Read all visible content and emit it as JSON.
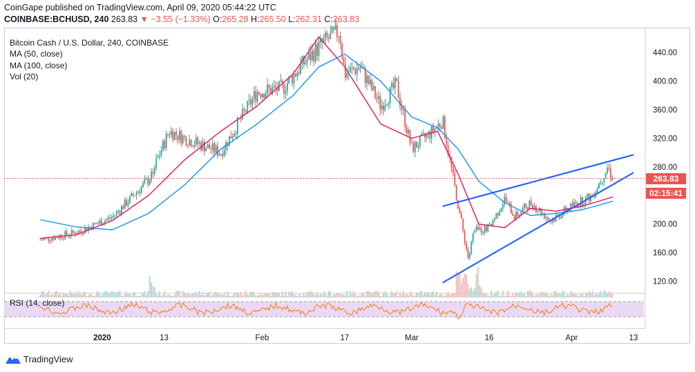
{
  "header": {
    "published_line": "CoinGape published on TradingView.com, April 09, 2020 05:44:22 UTC",
    "symbol": "COINBASE:BCHUSD, 240",
    "last": "263.83",
    "change": "▼ −3.55 (−1.33%)",
    "o_label": "O:",
    "o_value": "265.28",
    "h_label": "H:",
    "h_value": "265.50",
    "l_label": "L:",
    "l_value": "262.31",
    "c_label": "C:",
    "c_value": "263.83"
  },
  "legend": {
    "title": "Bitcoin Cash / U.S. Dollar, 240, COINBASE",
    "ma50": "MA (50, close)",
    "ma100": "MA (100, close)",
    "vol": "Vol (20)",
    "rsi": "RSI (14, close)"
  },
  "price_tag": "263.83",
  "time_tag": "02:15:41",
  "footer": {
    "brand": "TradingView"
  },
  "colors": {
    "up": "#26a69a",
    "down": "#ef5350",
    "ma50": "#e91e63",
    "ma100": "#2196f3",
    "trendline": "#2962ff",
    "rsi": "#f57c00",
    "rsi_band": "#ead9f5"
  },
  "chart_data": {
    "type": "line",
    "title": "Bitcoin Cash / U.S. Dollar, 240, COINBASE",
    "ylim": [
      105,
      475
    ],
    "y_ticks": [
      "440.00",
      "400.00",
      "360.00",
      "320.00",
      "280.00",
      "240.00",
      "200.00",
      "160.00",
      "120.00"
    ],
    "x_ticks": [
      "2020",
      "13",
      "Feb",
      "17",
      "Mar",
      "16",
      "Apr",
      "13"
    ],
    "grid": false,
    "series": [
      {
        "name": "MA (50, close)",
        "x": [
          "2019-12-20",
          "2019-12-27",
          "2020-01-03",
          "2020-01-10",
          "2020-01-17",
          "2020-01-24",
          "2020-01-31",
          "2020-02-07",
          "2020-02-12",
          "2020-02-17",
          "2020-02-24",
          "2020-03-01",
          "2020-03-06",
          "2020-03-10",
          "2020-03-14",
          "2020-03-19",
          "2020-03-24",
          "2020-03-29",
          "2020-04-03",
          "2020-04-09"
        ],
        "values": [
          180,
          185,
          205,
          240,
          290,
          330,
          365,
          410,
          462,
          420,
          340,
          320,
          330,
          270,
          200,
          195,
          222,
          218,
          225,
          238
        ]
      },
      {
        "name": "MA (100, close)",
        "x": [
          "2019-12-20",
          "2019-12-27",
          "2020-01-03",
          "2020-01-10",
          "2020-01-17",
          "2020-01-24",
          "2020-01-31",
          "2020-02-07",
          "2020-02-12",
          "2020-02-17",
          "2020-02-24",
          "2020-03-01",
          "2020-03-06",
          "2020-03-10",
          "2020-03-14",
          "2020-03-19",
          "2020-03-24",
          "2020-03-29",
          "2020-04-03",
          "2020-04-09"
        ],
        "values": [
          206,
          196,
          192,
          215,
          255,
          305,
          340,
          380,
          420,
          438,
          400,
          350,
          335,
          305,
          260,
          230,
          212,
          215,
          220,
          232
        ]
      },
      {
        "name": "Bitcoin Cash / U.S. Dollar",
        "x": [
          "2019-12-20",
          "2019-12-27",
          "2020-01-03",
          "2020-01-10",
          "2020-01-14",
          "2020-01-17",
          "2020-01-24",
          "2020-01-31",
          "2020-02-05",
          "2020-02-09",
          "2020-02-13",
          "2020-02-16",
          "2020-02-17",
          "2020-02-20",
          "2020-02-24",
          "2020-02-27",
          "2020-03-01",
          "2020-03-05",
          "2020-03-07",
          "2020-03-09",
          "2020-03-12",
          "2020-03-13",
          "2020-03-16",
          "2020-03-19",
          "2020-03-21",
          "2020-03-24",
          "2020-03-28",
          "2020-04-01",
          "2020-04-05",
          "2020-04-08",
          "2020-04-09"
        ],
        "values": [
          178,
          188,
          210,
          262,
          330,
          320,
          300,
          385,
          390,
          425,
          455,
          470,
          410,
          420,
          365,
          395,
          305,
          330,
          345,
          265,
          150,
          190,
          195,
          235,
          210,
          230,
          205,
          225,
          240,
          280,
          264
        ]
      }
    ],
    "trendlines": [
      {
        "name": "upper",
        "from": [
          "2020-03-07",
          225
        ],
        "to": [
          "2020-04-13",
          297
        ]
      },
      {
        "name": "lower",
        "from": [
          "2020-03-07",
          118
        ],
        "to": [
          "2020-04-13",
          272
        ]
      }
    ],
    "last_price": 263.83
  }
}
